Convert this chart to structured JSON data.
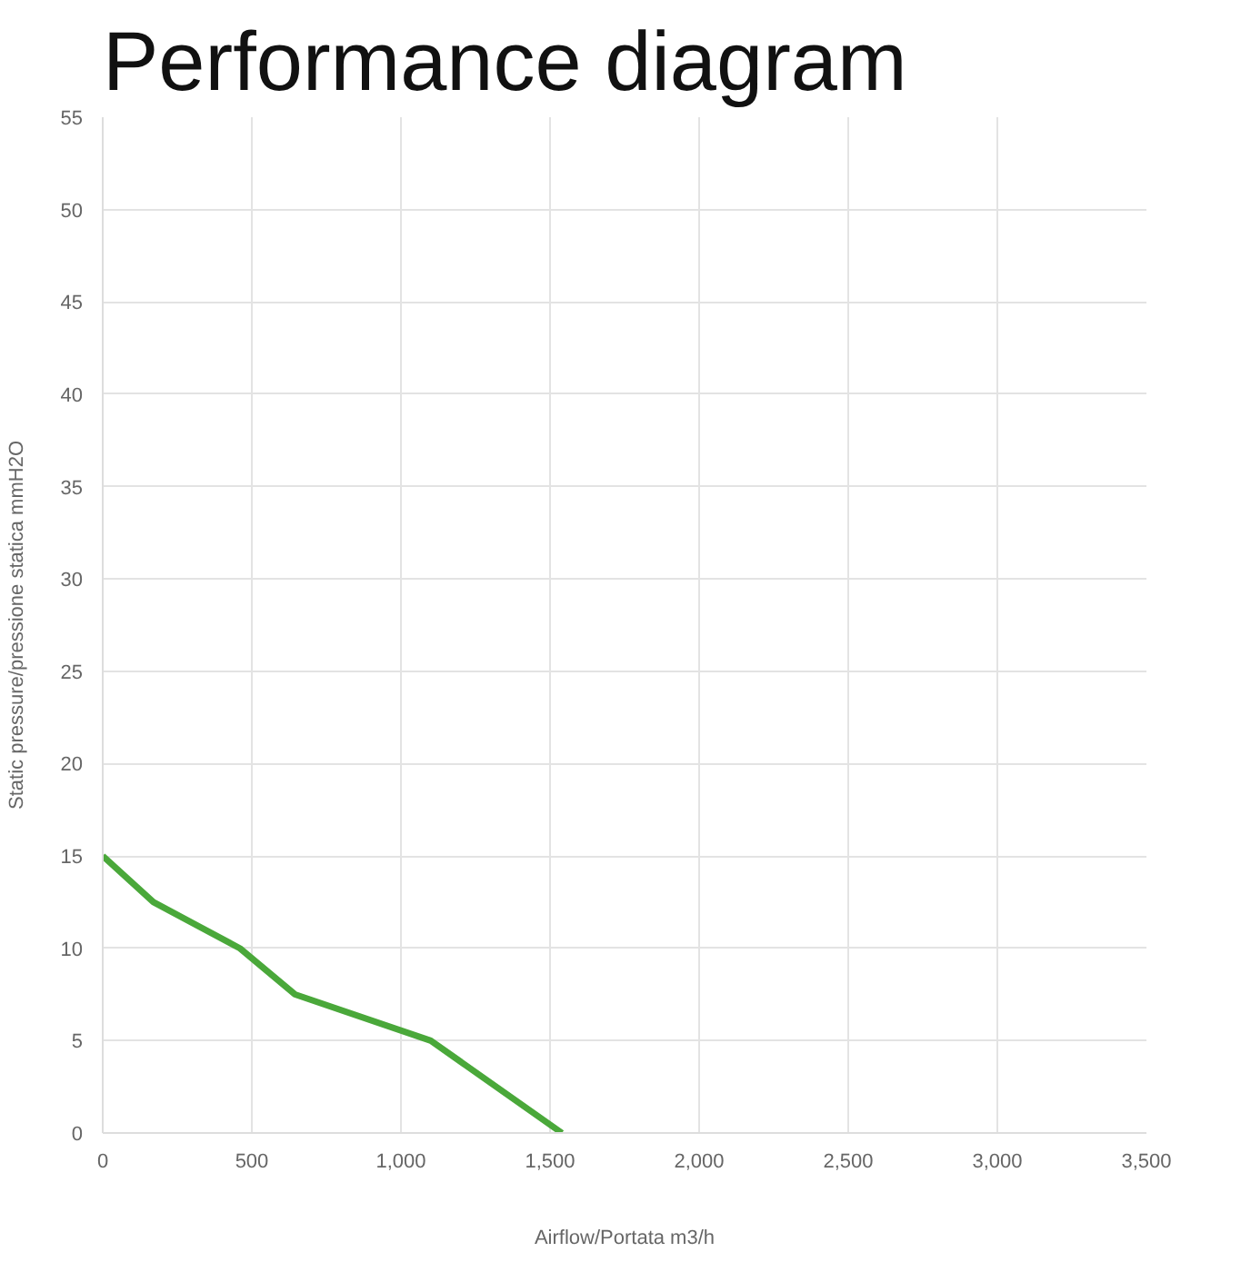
{
  "chart_data": {
    "type": "line",
    "title": "Performance diagram",
    "xlabel": "Airflow/Portata m3/h",
    "ylabel": "Static pressure/pressione statica mmH2O",
    "x": [
      0,
      170,
      460,
      645,
      1100,
      1540
    ],
    "series": [
      {
        "color": "#4aa83a",
        "values": [
          15,
          12.5,
          10,
          7.5,
          5,
          0
        ]
      }
    ],
    "xlim": [
      0,
      3500
    ],
    "xticks": [
      0,
      {
        "value": 500,
        "label": "500"
      },
      {
        "value": 1000,
        "label": "1,000"
      },
      {
        "value": 1500,
        "label": "1,500"
      },
      {
        "value": 2000,
        "label": "2,000"
      },
      {
        "value": 2500,
        "label": "2,500"
      },
      {
        "value": 3000,
        "label": "3,000"
      },
      {
        "value": 3500,
        "label": "3,500"
      }
    ],
    "ylim": [
      0,
      55
    ],
    "yticks": [
      0,
      5,
      10,
      15,
      20,
      25,
      30,
      35,
      40,
      45,
      50,
      55
    ],
    "grid": true,
    "marker": "none",
    "line_style": "solid"
  }
}
